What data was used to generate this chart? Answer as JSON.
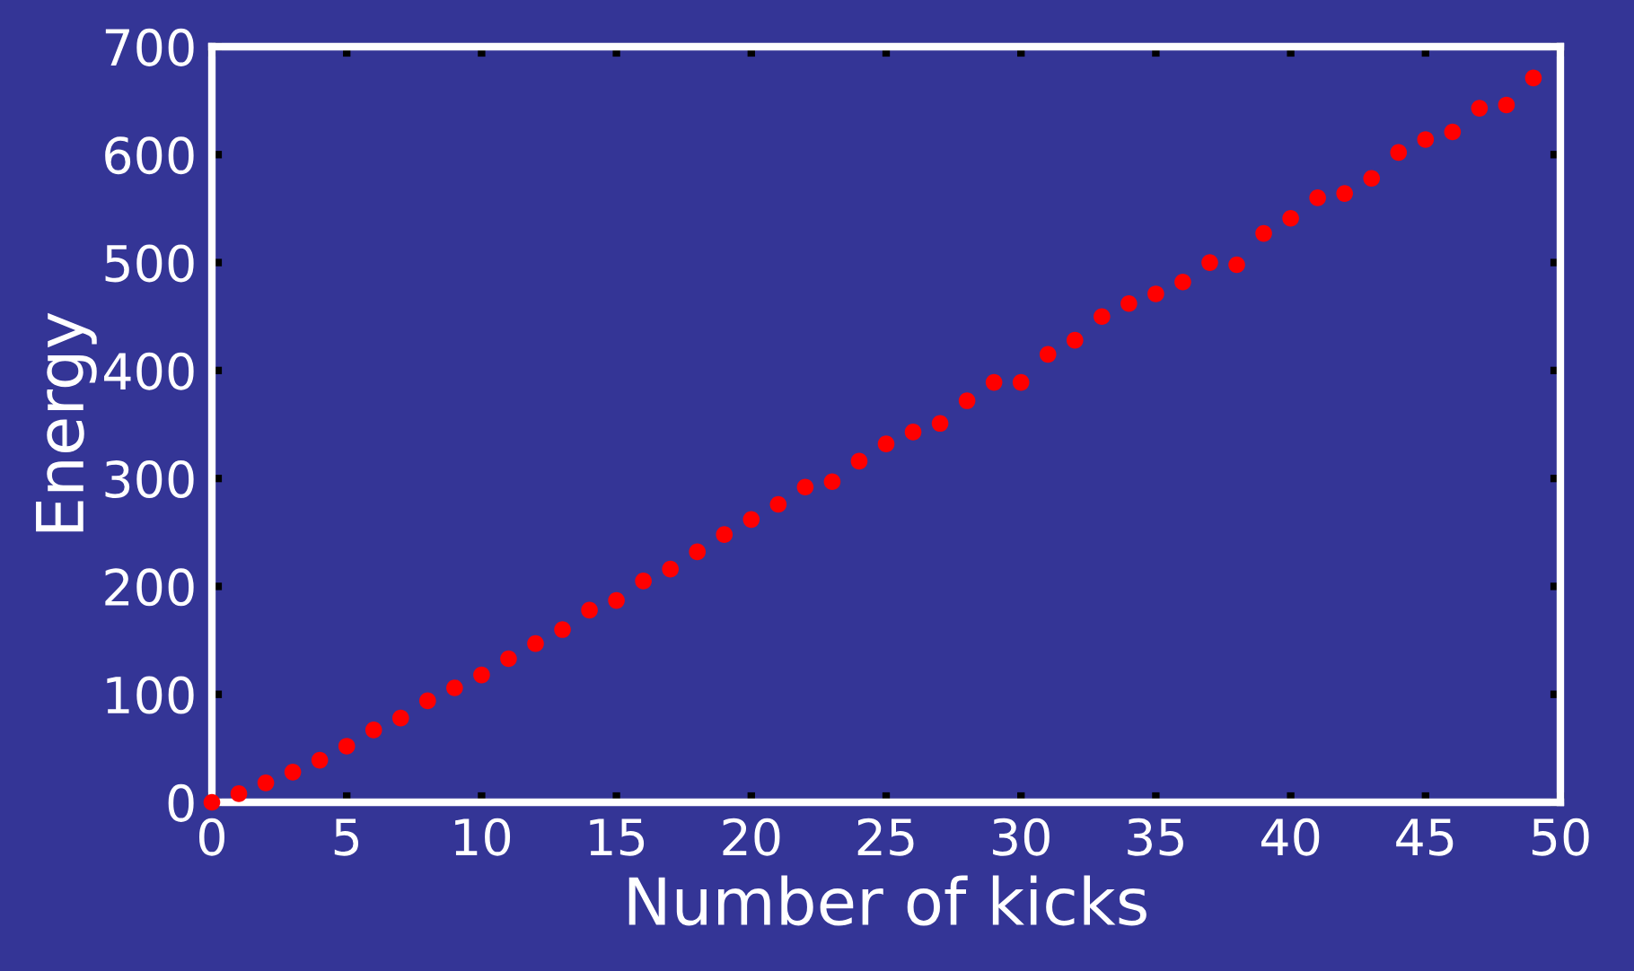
{
  "chart_data": {
    "type": "scatter",
    "xlabel": "Number of kicks",
    "ylabel": "Energy",
    "x": [
      0,
      1,
      2,
      3,
      4,
      5,
      6,
      7,
      8,
      9,
      10,
      11,
      12,
      13,
      14,
      15,
      16,
      17,
      18,
      19,
      20,
      21,
      22,
      23,
      24,
      25,
      26,
      27,
      28,
      29,
      30,
      31,
      32,
      33,
      34,
      35,
      36,
      37,
      38,
      39,
      40,
      41,
      42,
      43,
      44,
      45,
      46,
      47,
      48,
      49
    ],
    "series": [
      {
        "color": "#ff0000",
        "values": [
          0,
          8,
          18,
          28,
          39,
          52,
          67,
          78,
          94,
          106,
          118,
          133,
          147,
          160,
          178,
          187,
          205,
          216,
          232,
          248,
          262,
          276,
          292,
          297,
          316,
          332,
          343,
          351,
          372,
          389,
          389,
          415,
          428,
          450,
          462,
          471,
          482,
          500,
          498,
          527,
          541,
          560,
          564,
          578,
          602,
          614,
          621,
          643,
          646,
          671
        ]
      }
    ],
    "xlim": [
      0,
      50
    ],
    "xticks": [
      0,
      5,
      10,
      15,
      20,
      25,
      30,
      35,
      40,
      45,
      50
    ],
    "ylim": [
      0,
      700
    ],
    "yticks": [
      0,
      100,
      200,
      300,
      400,
      500,
      600,
      700
    ],
    "marker": "circle",
    "grid": false,
    "legend": false
  }
}
